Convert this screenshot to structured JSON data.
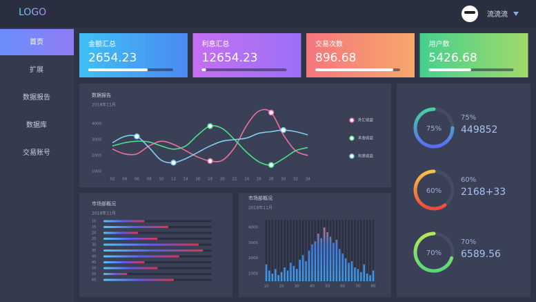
{
  "header": {
    "logo": "LOGO",
    "user": "流流流"
  },
  "nav": [
    "首页",
    "扩展",
    "数据报告",
    "数据库",
    "交易账号"
  ],
  "cards": [
    {
      "title": "金额汇总",
      "value": "2654.23",
      "progress": 70
    },
    {
      "title": "利息汇总",
      "value": "12654.23",
      "progress": 5
    },
    {
      "title": "交易次数",
      "value": "896.68",
      "progress": 92
    },
    {
      "title": "用户数",
      "value": "5426.68",
      "progress": 50
    }
  ],
  "line_chart": {
    "type": "line",
    "title": "数据报告",
    "subtitle": "2018年11月",
    "categories": [
      "02",
      "04",
      "06",
      "08",
      "10",
      "12",
      "14",
      "16",
      "18",
      "20",
      "22",
      "24",
      "26",
      "28",
      "30",
      "32",
      "34"
    ],
    "ylim": [
      1000,
      5000
    ],
    "yticks": [
      1000,
      2000,
      3000,
      4000
    ],
    "grid": false,
    "series": [
      {
        "name": "外汇收益",
        "color": "#f06fa0",
        "values": [
          2400,
          2100,
          2100,
          2600,
          2900,
          2700,
          2300,
          1900,
          1650,
          1700,
          2500,
          3900,
          4800,
          4700,
          3300,
          2300,
          2000
        ]
      },
      {
        "name": "本金收益",
        "color": "#4ee08c",
        "values": [
          2600,
          2800,
          2900,
          2850,
          2600,
          2400,
          2600,
          3300,
          3850,
          3700,
          3000,
          2200,
          1600,
          1400,
          1800,
          2300,
          2500
        ]
      },
      {
        "name": "利息收益",
        "color": "#7fd0f0",
        "values": [
          2800,
          3200,
          3200,
          2500,
          1700,
          1550,
          1800,
          2200,
          2600,
          2900,
          3000,
          3100,
          3400,
          3500,
          3600,
          3500,
          3300
        ]
      }
    ]
  },
  "hbar_chart": {
    "type": "hbar",
    "title": "市场部概况",
    "subtitle": "2018年11月",
    "categories": [
      "10",
      "15",
      "20",
      "25",
      "30",
      "35",
      "40",
      "45",
      "50",
      "55",
      "60"
    ],
    "xlim": [
      0,
      100
    ],
    "values": [
      38,
      60,
      32,
      50,
      88,
      92,
      70,
      38,
      50,
      22,
      65
    ]
  },
  "vbar_chart": {
    "type": "bar",
    "title": "市场部概况",
    "subtitle": "2018年11月",
    "categories": [
      "10",
      null,
      null,
      null,
      null,
      "20",
      null,
      null,
      null,
      null,
      "30",
      null,
      null,
      null,
      null,
      "40",
      null,
      null,
      null,
      null,
      "50",
      null,
      null,
      null,
      null,
      "60",
      null,
      null,
      null,
      null,
      "70",
      null,
      null,
      null,
      null,
      "80"
    ],
    "ylim": [
      500,
      4500
    ],
    "yticks": [
      1000,
      2000,
      3000,
      4000
    ],
    "values": [
      1600,
      1200,
      1000,
      1300,
      900,
      1100,
      1400,
      1200,
      1700,
      1500,
      1300,
      1900,
      2200,
      1800,
      2500,
      2900,
      3100,
      3600,
      3300,
      4000,
      3700,
      3400,
      3000,
      3200,
      2600,
      2300,
      2000,
      1700,
      1800,
      1400,
      1300,
      1100,
      1600,
      1000,
      900,
      1200
    ]
  },
  "gauges": [
    {
      "value": 75,
      "label": "75%",
      "amount": "449852"
    },
    {
      "value": 60,
      "label": "60%",
      "amount": "2168+33"
    },
    {
      "value": 70,
      "label": "70%",
      "amount": "6589.56"
    }
  ]
}
